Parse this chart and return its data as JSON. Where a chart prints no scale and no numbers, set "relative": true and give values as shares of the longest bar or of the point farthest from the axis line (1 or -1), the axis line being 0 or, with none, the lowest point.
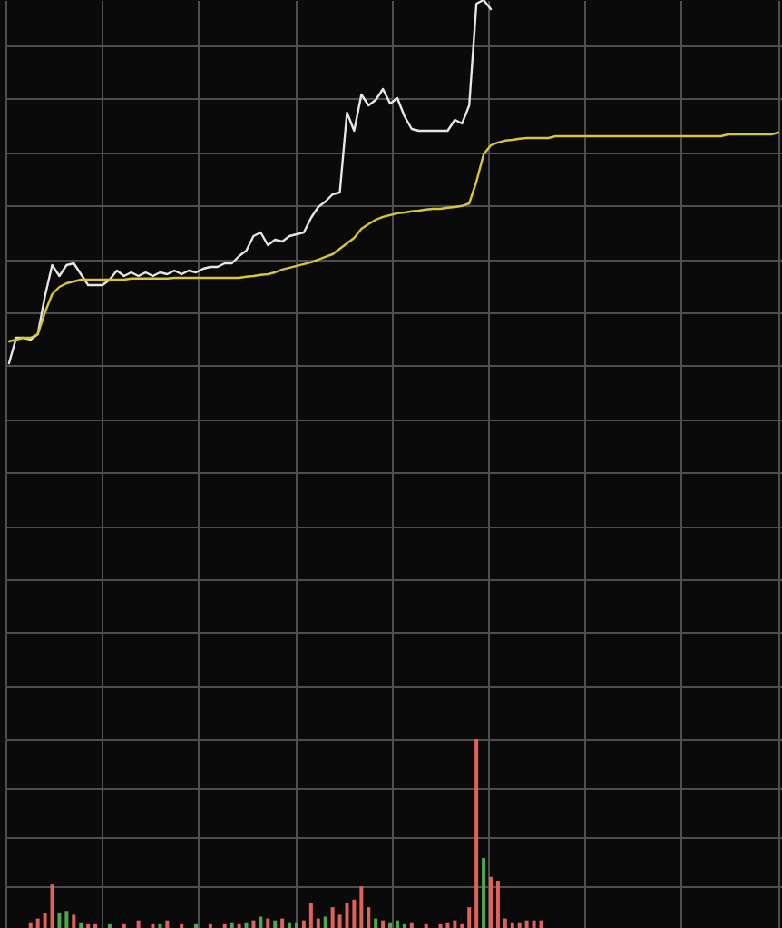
{
  "chart_data": [
    {
      "type": "line",
      "relative": true,
      "grid": true,
      "categories": [
        null,
        null,
        null,
        null,
        null,
        null,
        null,
        null,
        null,
        null,
        null,
        null,
        null,
        null,
        null,
        null,
        null,
        null,
        null,
        null,
        null,
        null,
        null,
        null,
        null,
        null,
        null,
        null,
        null,
        null,
        null,
        null,
        null,
        null,
        null,
        null,
        null,
        null,
        null,
        null,
        null,
        null,
        null,
        null,
        null,
        null,
        null,
        null,
        null,
        null,
        null,
        null,
        null,
        null,
        null,
        null,
        null,
        null,
        null,
        null,
        null,
        null,
        null,
        null,
        null,
        null,
        null,
        null,
        null,
        null,
        null,
        null,
        null,
        null,
        null,
        null,
        null,
        null,
        null,
        null,
        null,
        null,
        null,
        null,
        null,
        null,
        null,
        null,
        null,
        null,
        null,
        null,
        null,
        null,
        null,
        null,
        null,
        null,
        null,
        null,
        null,
        null,
        null,
        null,
        null,
        null,
        null,
        null
      ],
      "series": [
        {
          "color": "#e6e6e6",
          "values": [
            0,
            0.07,
            0.07,
            0.065,
            0.08,
            0.185,
            0.27,
            0.24,
            0.27,
            0.275,
            0.245,
            0.215,
            0.215,
            0.215,
            0.23,
            0.255,
            0.24,
            0.25,
            0.24,
            0.25,
            0.24,
            0.25,
            0.245,
            0.255,
            0.245,
            0.255,
            0.25,
            0.26,
            0.265,
            0.265,
            0.275,
            0.275,
            0.295,
            0.31,
            0.35,
            0.36,
            0.325,
            0.34,
            0.335,
            0.35,
            0.355,
            0.36,
            0.4,
            0.43,
            0.445,
            0.465,
            0.47,
            0.69,
            0.64,
            0.74,
            0.71,
            0.725,
            0.755,
            0.715,
            0.73,
            0.68,
            0.645,
            0.64,
            0.64,
            0.64,
            0.64,
            0.64,
            0.67,
            0.66,
            0.71,
            0.99,
            1,
            0.975,
            null,
            null,
            null,
            null,
            null,
            null,
            null,
            null,
            null,
            null,
            null,
            null,
            null,
            null,
            null,
            null,
            null,
            null,
            null,
            null,
            null,
            null,
            null,
            null,
            null,
            null,
            null,
            null,
            null,
            null,
            null,
            null,
            null,
            null,
            null,
            null,
            null,
            null,
            null,
            null
          ]
        },
        {
          "color": "#d8c63a",
          "values": [
            0.06,
            0.065,
            0.07,
            0.07,
            0.08,
            0.14,
            0.19,
            0.21,
            0.22,
            0.225,
            0.23,
            0.23,
            0.23,
            0.23,
            0.23,
            0.23,
            0.23,
            0.233,
            0.233,
            0.233,
            0.233,
            0.233,
            0.233,
            0.235,
            0.235,
            0.235,
            0.235,
            0.235,
            0.235,
            0.235,
            0.235,
            0.235,
            0.235,
            0.238,
            0.24,
            0.243,
            0.245,
            0.25,
            0.258,
            0.263,
            0.268,
            0.273,
            0.278,
            0.285,
            0.293,
            0.3,
            0.315,
            0.33,
            0.345,
            0.37,
            0.383,
            0.395,
            0.403,
            0.408,
            0.413,
            0.415,
            0.418,
            0.42,
            0.423,
            0.425,
            0.425,
            0.428,
            0.43,
            0.433,
            0.44,
            0.5,
            0.575,
            0.6,
            0.608,
            0.613,
            0.615,
            0.618,
            0.62,
            0.62,
            0.62,
            0.62,
            0.625,
            0.625,
            0.625,
            0.625,
            0.625,
            0.625,
            0.625,
            0.625,
            0.625,
            0.625,
            0.625,
            0.625,
            0.625,
            0.625,
            0.625,
            0.625,
            0.625,
            0.625,
            0.625,
            0.625,
            0.625,
            0.625,
            0.625,
            0.625,
            0.63,
            0.63,
            0.63,
            0.63,
            0.63,
            0.63,
            0.63,
            0.635
          ]
        }
      ]
    },
    {
      "type": "bar",
      "relative": true,
      "grid": true,
      "categories": [
        null,
        null,
        null,
        null,
        null,
        null,
        null,
        null,
        null,
        null,
        null,
        null,
        null,
        null,
        null,
        null,
        null,
        null,
        null,
        null,
        null,
        null,
        null,
        null,
        null,
        null,
        null,
        null,
        null,
        null,
        null,
        null,
        null,
        null,
        null,
        null,
        null,
        null,
        null,
        null,
        null,
        null,
        null,
        null,
        null,
        null,
        null,
        null,
        null,
        null,
        null,
        null,
        null,
        null,
        null,
        null,
        null,
        null,
        null,
        null,
        null,
        null,
        null,
        null,
        null,
        null,
        null,
        null,
        null,
        null,
        null,
        null,
        null,
        null,
        null,
        null,
        null,
        null,
        null,
        null,
        null,
        null,
        null,
        null,
        null,
        null,
        null,
        null,
        null,
        null,
        null,
        null,
        null,
        null,
        null,
        null,
        null,
        null,
        null,
        null,
        null,
        null,
        null,
        null,
        null,
        null,
        null,
        null
      ],
      "values": [
        null,
        null,
        null,
        0.03,
        0.05,
        0.08,
        0.23,
        0.08,
        0.09,
        0.07,
        0.03,
        0.02,
        0.02,
        null,
        0.02,
        null,
        0.02,
        null,
        0.04,
        null,
        0.02,
        0.02,
        0.04,
        null,
        0.02,
        null,
        0.02,
        null,
        0.02,
        null,
        0.02,
        0.03,
        0.02,
        0.03,
        0.04,
        0.06,
        0.05,
        0.04,
        0.05,
        0.03,
        0.03,
        0.04,
        0.13,
        0.05,
        0.06,
        0.11,
        0.07,
        0.13,
        0.15,
        0.22,
        0.11,
        0.05,
        0.04,
        0.03,
        0.04,
        0.02,
        0.03,
        null,
        0.02,
        null,
        0.02,
        0.03,
        0.04,
        0.02,
        0.11,
        1,
        0.37,
        0.27,
        0.25,
        0.05,
        0.03,
        0.03,
        0.04,
        0.04,
        0.04,
        null,
        null,
        null,
        null,
        null,
        null,
        null,
        null,
        null,
        null,
        null,
        null,
        null,
        null,
        null,
        null,
        null,
        null,
        null,
        null,
        null,
        null,
        null,
        null,
        null,
        null,
        null,
        null,
        null,
        null,
        null,
        null,
        null
      ],
      "colors": [
        null,
        null,
        null,
        "#e0625c",
        "#e0625c",
        "#e0625c",
        "#e0625c",
        "#4fa84f",
        "#4fa84f",
        "#e0625c",
        "#4fa84f",
        "#e0625c",
        "#e0625c",
        null,
        "#4fa84f",
        null,
        "#e0625c",
        null,
        "#e0625c",
        null,
        "#e0625c",
        "#4fa84f",
        "#e0625c",
        null,
        "#e0625c",
        null,
        "#4fa84f",
        null,
        "#e0625c",
        null,
        "#e0625c",
        "#4fa84f",
        "#e0625c",
        "#4fa84f",
        "#e0625c",
        "#4fa84f",
        "#e0625c",
        "#4fa84f",
        "#e0625c",
        "#4fa84f",
        "#4fa84f",
        "#e0625c",
        "#e0625c",
        "#e0625c",
        "#4fa84f",
        "#e0625c",
        "#e0625c",
        "#e0625c",
        "#e0625c",
        "#e0625c",
        "#e0625c",
        "#4fa84f",
        "#e0625c",
        "#4fa84f",
        "#4fa84f",
        "#4fa84f",
        "#e0625c",
        null,
        "#e0625c",
        null,
        "#e0625c",
        "#e0625c",
        "#e0625c",
        "#e0625c",
        "#e0625c",
        "#e0625c",
        "#4fa84f",
        "#e0625c",
        "#e0625c",
        "#e0625c",
        "#e0625c",
        "#e0625c",
        "#e0625c",
        "#e0625c",
        "#e0625c",
        null,
        null,
        null,
        null,
        null,
        null,
        null,
        null,
        null,
        null,
        null,
        null,
        null,
        null,
        null,
        null,
        null,
        null,
        null,
        null,
        null,
        null,
        null,
        null,
        null,
        null,
        null,
        null,
        null,
        null,
        null,
        null,
        null
      ]
    }
  ]
}
